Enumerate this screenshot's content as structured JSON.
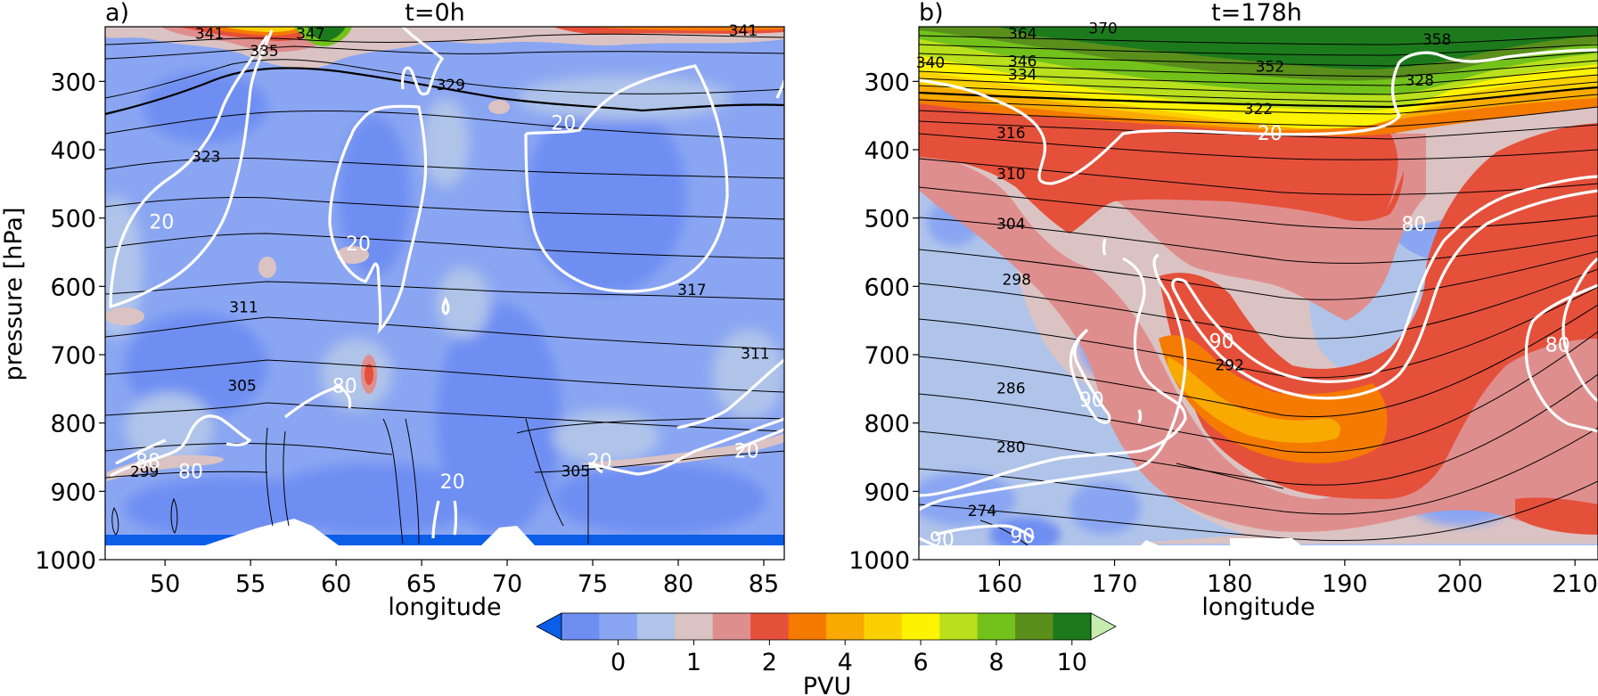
{
  "colors": {
    "levels": [
      "#0a5ee8",
      "#6e8ef2",
      "#8aa6f2",
      "#b0c4ea",
      "#dbc3c3",
      "#df8e8e",
      "#e5503b",
      "#f57b00",
      "#f8aa00",
      "#fbd000",
      "#fdf300",
      "#b8e01c",
      "#73c11b",
      "#5a8f1c",
      "#1c7a1c",
      "#c6ecb0"
    ],
    "theta_contour": "#000000",
    "wind_contour": "#ffffff"
  },
  "colorbar": {
    "label": "PVU",
    "ticks": [
      "0",
      "1",
      "2",
      "4",
      "6",
      "8",
      "10"
    ]
  },
  "chart_data": [
    {
      "type": "heatmap",
      "panel_label": "a)",
      "title": "t=0h",
      "xlabel": "longitude",
      "ylabel": "pressure [hPa]",
      "xlim": [
        46.5,
        86.2
      ],
      "ylim": [
        1000,
        220
      ],
      "y_inverted": true,
      "xticks": [
        "50",
        "55",
        "60",
        "65",
        "70",
        "75",
        "80",
        "85"
      ],
      "yticks": [
        "300",
        "400",
        "500",
        "600",
        "700",
        "800",
        "900",
        "1000"
      ],
      "shading": "potential vorticity (PVU), mostly 0-1 PVU, >2 PVU only near top",
      "theta_labels": [
        {
          "text": "341",
          "lon": 52.6,
          "p": 230
        },
        {
          "text": "335",
          "lon": 55.8,
          "p": 255
        },
        {
          "text": "347",
          "lon": 58.5,
          "p": 230
        },
        {
          "text": "341",
          "lon": 83.8,
          "p": 225
        },
        {
          "text": "329",
          "lon": 66.7,
          "p": 305
        },
        {
          "text": "323",
          "lon": 52.4,
          "p": 410
        },
        {
          "text": "317",
          "lon": 80.8,
          "p": 605
        },
        {
          "text": "311",
          "lon": 54.6,
          "p": 630
        },
        {
          "text": "311",
          "lon": 84.5,
          "p": 698
        },
        {
          "text": "305",
          "lon": 54.5,
          "p": 745
        },
        {
          "text": "305",
          "lon": 74.0,
          "p": 870
        },
        {
          "text": "299",
          "lon": 48.8,
          "p": 871
        }
      ],
      "wind_labels": [
        {
          "text": "20",
          "lon": 49.8,
          "p": 505
        },
        {
          "text": "20",
          "lon": 61.3,
          "p": 537
        },
        {
          "text": "20",
          "lon": 73.3,
          "p": 360
        },
        {
          "text": "80",
          "lon": 60.5,
          "p": 745
        },
        {
          "text": "88",
          "lon": 49.0,
          "p": 855
        },
        {
          "text": "80",
          "lon": 51.5,
          "p": 870
        },
        {
          "text": "20",
          "lon": 75.4,
          "p": 855
        },
        {
          "text": "20",
          "lon": 84.0,
          "p": 840
        },
        {
          "text": "20",
          "lon": 66.8,
          "p": 885
        }
      ]
    },
    {
      "type": "heatmap",
      "panel_label": "b)",
      "title": "t=178h",
      "xlabel": "longitude",
      "xlim": [
        153,
        212
      ],
      "ylim": [
        1000,
        220
      ],
      "y_inverted": true,
      "xticks": [
        "160",
        "170",
        "180",
        "190",
        "200",
        "210"
      ],
      "yticks": [
        "300",
        "400",
        "500",
        "600",
        "700",
        "800",
        "900",
        "1000"
      ],
      "shading": "potential vorticity (PVU), >6 PVU stratospheric layer on top, 2-4 PVU intrusion descending to ~900 hPa",
      "theta_labels": [
        {
          "text": "364",
          "lon": 162.0,
          "p": 230
        },
        {
          "text": "370",
          "lon": 169.0,
          "p": 222
        },
        {
          "text": "358",
          "lon": 198.0,
          "p": 238
        },
        {
          "text": "340",
          "lon": 154.0,
          "p": 272
        },
        {
          "text": "346",
          "lon": 162.0,
          "p": 270
        },
        {
          "text": "334",
          "lon": 162.0,
          "p": 290
        },
        {
          "text": "352",
          "lon": 183.5,
          "p": 278
        },
        {
          "text": "328",
          "lon": 196.5,
          "p": 298
        },
        {
          "text": "322",
          "lon": 182.5,
          "p": 340
        },
        {
          "text": "316",
          "lon": 161.0,
          "p": 375
        },
        {
          "text": "310",
          "lon": 161.0,
          "p": 435
        },
        {
          "text": "304",
          "lon": 161.0,
          "p": 508
        },
        {
          "text": "298",
          "lon": 161.5,
          "p": 590
        },
        {
          "text": "292",
          "lon": 180.0,
          "p": 715
        },
        {
          "text": "286",
          "lon": 161.0,
          "p": 749
        },
        {
          "text": "280",
          "lon": 161.0,
          "p": 835
        },
        {
          "text": "274",
          "lon": 158.5,
          "p": 928
        }
      ],
      "wind_labels": [
        {
          "text": "20",
          "lon": 183.5,
          "p": 375
        },
        {
          "text": "80",
          "lon": 196.0,
          "p": 508
        },
        {
          "text": "90",
          "lon": 179.3,
          "p": 680
        },
        {
          "text": "90",
          "lon": 168.0,
          "p": 765
        },
        {
          "text": "80",
          "lon": 208.5,
          "p": 685
        },
        {
          "text": "90",
          "lon": 155.0,
          "p": 970
        },
        {
          "text": "90",
          "lon": 162.0,
          "p": 965
        }
      ]
    }
  ]
}
